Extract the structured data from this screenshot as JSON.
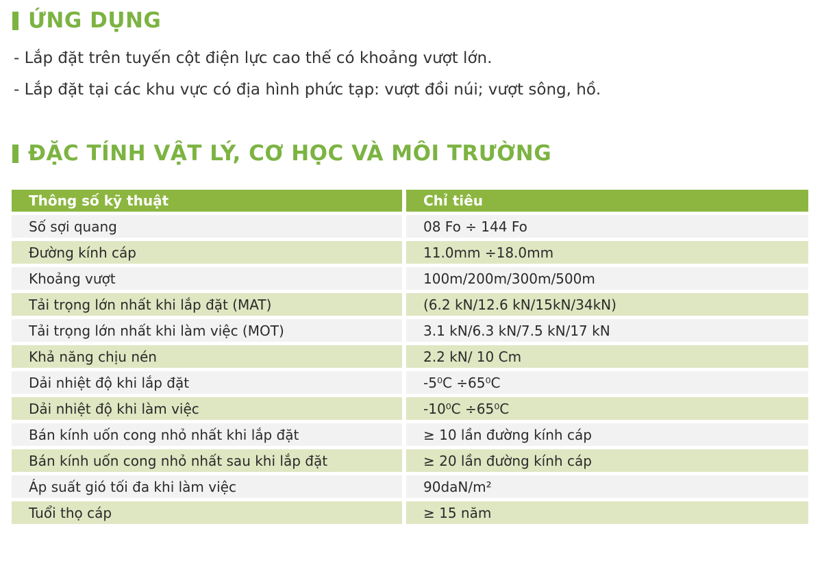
{
  "section1": {
    "title": "ỨNG DỤNG",
    "lines": [
      "- Lắp đặt trên tuyến cột điện lực cao thế có khoảng vượt lớn.",
      "- Lắp đặt tại các khu vực có địa hình phức tạp: vượt đồi núi; vượt sông, hồ."
    ]
  },
  "section2": {
    "title": "ĐẶC TÍNH VẬT LÝ, CƠ HỌC VÀ MÔI TRƯỜNG"
  },
  "colors": {
    "accent": "#7cb342",
    "header_bg": "#8cb640",
    "row_light": "#f2f2f2",
    "row_green": "#dfe6c2"
  },
  "table": {
    "headers": [
      "Thông số kỹ thuật",
      "Chỉ tiêu"
    ],
    "rows": [
      [
        "Số sợi quang",
        "08 Fo ÷ 144 Fo"
      ],
      [
        "Đường kính cáp",
        "11.0mm ÷18.0mm"
      ],
      [
        "Khoảng vượt",
        "100m/200m/300m/500m"
      ],
      [
        "Tải trọng lớn nhất khi lắp đặt (MAT)",
        "(6.2 kN/12.6 kN/15kN/34kN)"
      ],
      [
        "Tải trọng lớn nhất khi làm việc (MOT)",
        "3.1 kN/6.3 kN/7.5 kN/17 kN"
      ],
      [
        "Khả năng chịu nén",
        "2.2 kN/ 10 Cm"
      ],
      [
        "Dải nhiệt độ khi lắp đặt",
        "-5⁰C ÷65⁰C"
      ],
      [
        "Dải nhiệt độ khi làm việc",
        "-10⁰C ÷65⁰C"
      ],
      [
        "Bán kính uốn cong nhỏ nhất khi lắp đặt",
        "≥ 10 lần đường kính cáp"
      ],
      [
        "Bán kính uốn cong nhỏ nhất sau khi lắp đặt",
        "≥ 20 lần đường kính cáp"
      ],
      [
        "Áp suất gió tối đa khi làm việc",
        "90daN/m²"
      ],
      [
        "Tuổi thọ cáp",
        "≥ 15 năm"
      ]
    ]
  }
}
